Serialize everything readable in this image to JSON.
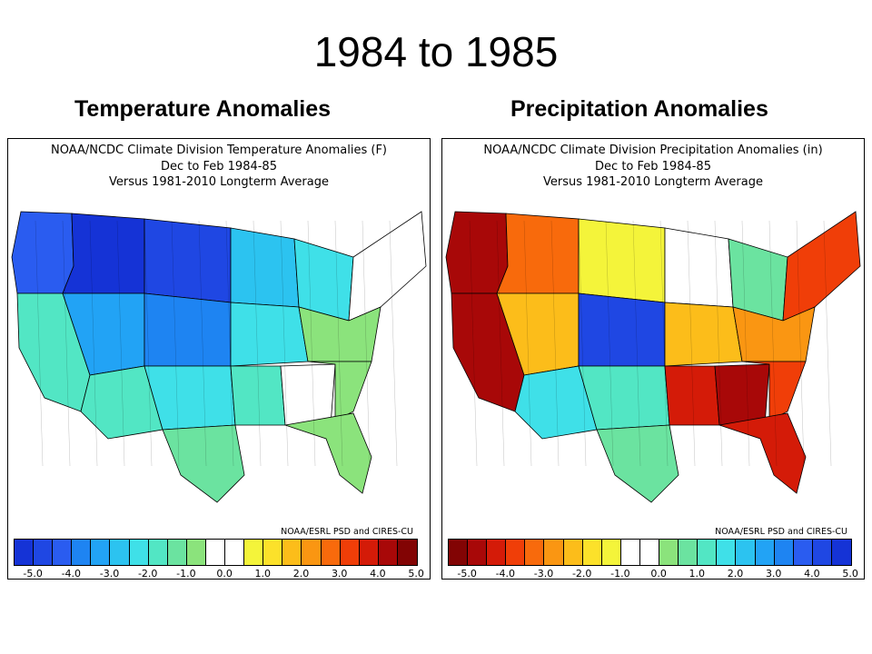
{
  "slide": {
    "title": "1984 to 1985"
  },
  "panels": {
    "temperature": {
      "heading": "Temperature Anomalies",
      "header_lines": [
        "NOAA/NCDC Climate Division Temperature Anomalies (F)",
        "Dec to Feb 1984-85",
        "Versus 1981-2010 Longterm Average"
      ],
      "credit": "NOAA/ESRL PSD and CIRES-CU",
      "colorbar": {
        "colors": [
          "#1533d6",
          "#1f47e3",
          "#2a5cf0",
          "#1e84f2",
          "#22a3f5",
          "#2cc3f0",
          "#3fe0e8",
          "#52e6c4",
          "#6be3a0",
          "#8be37c",
          "#ffffff",
          "#ffffff",
          "#f4f43a",
          "#fce12a",
          "#fcbd1a",
          "#fa9612",
          "#f86a0c",
          "#f03e08",
          "#d41b08",
          "#a80808",
          "#820404"
        ],
        "ticks": [
          "-5.0",
          "-4.0",
          "-3.0",
          "-2.0",
          "-1.0",
          "0.0",
          "1.0",
          "2.0",
          "3.0",
          "4.0",
          "5.0"
        ]
      },
      "regions": {
        "pacific_nw": "#2a5cf0",
        "northern_rockies": "#1533d6",
        "northern_plains": "#1f47e3",
        "upper_midwest": "#2cc3f0",
        "great_lakes": "#3fe0e8",
        "northeast": "#ffffff",
        "mid_atlantic": "#8be37c",
        "california": "#52e6c4",
        "great_basin": "#22a3f5",
        "central_plains": "#1e84f2",
        "ohio_valley": "#3fe0e8",
        "southwest": "#52e6c4",
        "southern_plains": "#3fe0e8",
        "mississippi_valley": "#52e6c4",
        "southeast": "#ffffff",
        "texas_south": "#6be3a0",
        "florida": "#8be37c",
        "carolinas": "#8be37c"
      }
    },
    "precipitation": {
      "heading": "Precipitation Anomalies",
      "header_lines": [
        "NOAA/NCDC Climate Division Precipitation Anomalies (in)",
        "Dec to Feb 1984-85",
        "Versus 1981-2010 Longterm Average"
      ],
      "credit": "NOAA/ESRL PSD and CIRES-CU",
      "colorbar": {
        "colors": [
          "#820404",
          "#a80808",
          "#d41b08",
          "#f03e08",
          "#f86a0c",
          "#fa9612",
          "#fcbd1a",
          "#fce12a",
          "#f4f43a",
          "#ffffff",
          "#ffffff",
          "#8be37c",
          "#6be3a0",
          "#52e6c4",
          "#3fe0e8",
          "#2cc3f0",
          "#22a3f5",
          "#1e84f2",
          "#2a5cf0",
          "#1f47e3",
          "#1533d6"
        ],
        "ticks": [
          "-5.0",
          "-4.0",
          "-3.0",
          "-2.0",
          "-1.0",
          "0.0",
          "1.0",
          "2.0",
          "3.0",
          "4.0",
          "5.0"
        ]
      },
      "regions": {
        "pacific_nw": "#a80808",
        "northern_rockies": "#f86a0c",
        "northern_plains": "#f4f43a",
        "upper_midwest": "#ffffff",
        "great_lakes": "#6be3a0",
        "northeast": "#f03e08",
        "mid_atlantic": "#fa9612",
        "california": "#a80808",
        "great_basin": "#fcbd1a",
        "central_plains": "#1f47e3",
        "ohio_valley": "#fcbd1a",
        "southwest": "#3fe0e8",
        "southern_plains": "#52e6c4",
        "mississippi_valley": "#d41b08",
        "southeast": "#a80808",
        "texas_south": "#6be3a0",
        "florida": "#d41b08",
        "carolinas": "#f03e08"
      }
    }
  }
}
